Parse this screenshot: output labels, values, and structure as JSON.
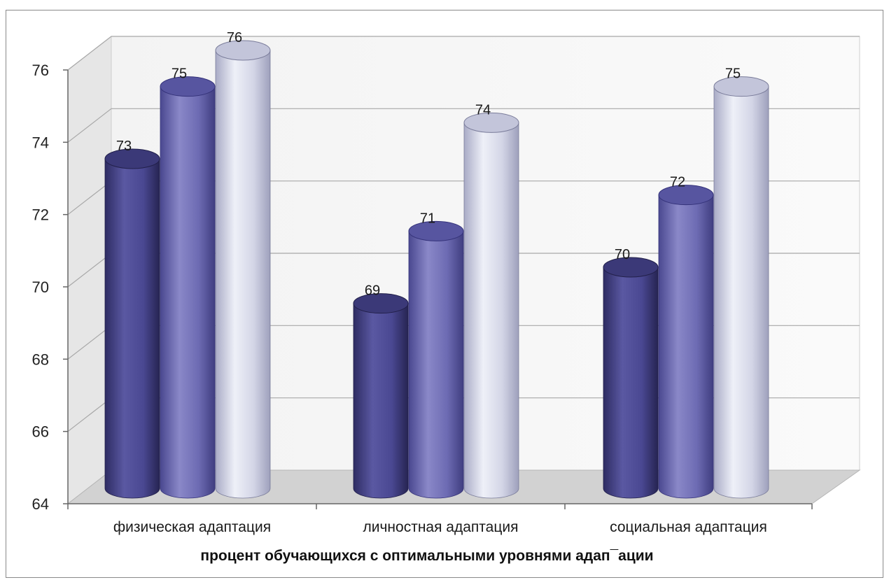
{
  "chart_data": {
    "type": "bar",
    "style": "3d-cylinder",
    "categories": [
      "физическая адаптация",
      "личностная адаптация",
      "социальная адаптация"
    ],
    "series": [
      {
        "values": [
          73,
          69,
          70
        ],
        "color": "#4a4892"
      },
      {
        "values": [
          75,
          71,
          72
        ],
        "color": "#6d6bb3"
      },
      {
        "values": [
          76,
          74,
          75
        ],
        "color": "#d3d5e6"
      }
    ],
    "title": "",
    "xlabel": "процент обучающихся с оптимальными уровнями адап¯ации",
    "ylabel": "",
    "ylim": [
      64,
      76
    ],
    "yticks": [
      64,
      66,
      68,
      70,
      72,
      74,
      76
    ],
    "grid": true,
    "legend": "none"
  }
}
